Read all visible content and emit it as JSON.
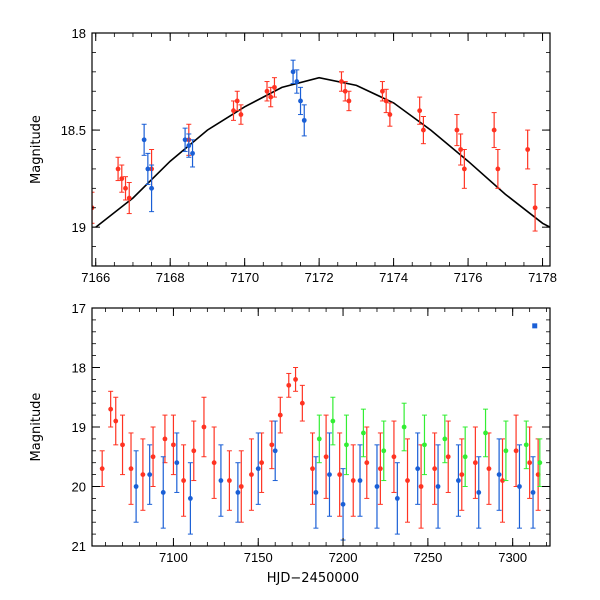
{
  "chart_data": [
    {
      "type": "scatter",
      "panel": "top",
      "title": "",
      "xlabel": "",
      "ylabel": "Magnitude",
      "xlim": [
        7165.9,
        7178.2
      ],
      "ylim": [
        19.2,
        18.0
      ],
      "y_inverted": true,
      "x_ticks": [
        7166,
        7168,
        7170,
        7172,
        7174,
        7176,
        7178
      ],
      "x_tick_labels": [
        "7166",
        "7168",
        "7170",
        "7172",
        "7174",
        "7176",
        "7178"
      ],
      "y_ticks": [
        18,
        18.5,
        19
      ],
      "y_tick_labels": [
        "18",
        "18.5",
        "19"
      ],
      "model_curve": {
        "name": "fit",
        "color": "#000000",
        "x": [
          7166.0,
          7167.0,
          7168.0,
          7169.0,
          7170.0,
          7171.0,
          7172.0,
          7173.0,
          7174.0,
          7175.0,
          7176.0,
          7177.0,
          7178.0,
          7178.2
        ],
        "y": [
          19.0,
          18.85,
          18.66,
          18.5,
          18.38,
          18.28,
          18.23,
          18.27,
          18.36,
          18.5,
          18.66,
          18.83,
          18.98,
          19.0
        ]
      },
      "series": [
        {
          "name": "red",
          "color": "#ff3322",
          "x": [
            7165.9,
            7166.6,
            7166.7,
            7166.8,
            7166.9,
            7167.5,
            7168.5,
            7169.7,
            7169.8,
            7169.9,
            7170.6,
            7170.7,
            7170.8,
            7172.6,
            7172.7,
            7172.8,
            7173.7,
            7173.8,
            7173.9,
            7174.7,
            7174.8,
            7175.7,
            7175.8,
            7175.9,
            7176.7,
            7176.8,
            7177.6,
            7177.8
          ],
          "y": [
            18.9,
            18.7,
            18.75,
            18.8,
            18.85,
            18.7,
            18.55,
            18.4,
            18.35,
            18.42,
            18.3,
            18.33,
            18.28,
            18.25,
            18.3,
            18.35,
            18.3,
            18.35,
            18.42,
            18.4,
            18.5,
            18.5,
            18.6,
            18.7,
            18.5,
            18.7,
            18.6,
            18.9
          ],
          "err": [
            0.08,
            0.06,
            0.07,
            0.06,
            0.08,
            0.1,
            0.08,
            0.05,
            0.05,
            0.05,
            0.05,
            0.05,
            0.05,
            0.05,
            0.05,
            0.05,
            0.05,
            0.06,
            0.06,
            0.07,
            0.07,
            0.08,
            0.08,
            0.1,
            0.09,
            0.1,
            0.1,
            0.12
          ]
        },
        {
          "name": "blue",
          "color": "#1a5fd6",
          "x": [
            7167.3,
            7167.4,
            7167.5,
            7168.4,
            7168.5,
            7168.6,
            7171.3,
            7171.4,
            7171.5,
            7171.6
          ],
          "y": [
            18.55,
            18.7,
            18.8,
            18.55,
            18.58,
            18.62,
            18.2,
            18.25,
            18.35,
            18.45
          ],
          "err": [
            0.08,
            0.08,
            0.12,
            0.06,
            0.06,
            0.07,
            0.06,
            0.06,
            0.07,
            0.08
          ]
        }
      ]
    },
    {
      "type": "scatter",
      "panel": "bottom",
      "title": "",
      "xlabel": "HJD−2450000",
      "ylabel": "Magnitude",
      "xlim": [
        7052,
        7322
      ],
      "ylim": [
        21,
        17
      ],
      "y_inverted": true,
      "x_ticks": [
        7100,
        7150,
        7200,
        7250,
        7300
      ],
      "x_tick_labels": [
        "7100",
        "7150",
        "7200",
        "7250",
        "7300"
      ],
      "y_ticks": [
        17,
        18,
        19,
        20,
        21
      ],
      "y_tick_labels": [
        "17",
        "18",
        "19",
        "20",
        "21"
      ],
      "series": [
        {
          "name": "red",
          "color": "#ff3322",
          "x": [
            7058,
            7063,
            7066,
            7070,
            7075,
            7082,
            7088,
            7095,
            7100,
            7106,
            7112,
            7118,
            7124,
            7133,
            7140,
            7146,
            7152,
            7158,
            7163,
            7168,
            7172,
            7176,
            7182,
            7190,
            7198,
            7206,
            7214,
            7222,
            7230,
            7238,
            7246,
            7254,
            7262,
            7270,
            7278,
            7286,
            7294,
            7302,
            7310,
            7315
          ],
          "y": [
            19.7,
            18.7,
            18.9,
            19.3,
            19.7,
            19.8,
            19.5,
            19.2,
            19.3,
            19.9,
            19.4,
            19.0,
            19.6,
            19.9,
            20.0,
            19.8,
            19.6,
            19.3,
            18.8,
            18.3,
            18.2,
            18.6,
            19.7,
            19.5,
            19.8,
            19.9,
            19.6,
            19.7,
            19.5,
            19.9,
            20.0,
            19.7,
            19.5,
            19.8,
            19.6,
            19.7,
            19.9,
            19.4,
            19.6,
            19.8
          ],
          "err": [
            0.3,
            0.3,
            0.4,
            0.5,
            0.6,
            0.6,
            0.5,
            0.4,
            0.5,
            0.6,
            0.5,
            0.5,
            0.6,
            0.5,
            0.6,
            0.6,
            0.5,
            0.4,
            0.3,
            0.2,
            0.2,
            0.3,
            0.6,
            0.7,
            0.7,
            0.6,
            0.6,
            0.6,
            0.6,
            0.7,
            0.7,
            0.6,
            0.6,
            0.6,
            0.6,
            0.6,
            0.7,
            0.6,
            0.6,
            0.6
          ]
        },
        {
          "name": "blue",
          "color": "#1a5fd6",
          "x": [
            7078,
            7086,
            7094,
            7102,
            7110,
            7128,
            7138,
            7150,
            7160,
            7184,
            7192,
            7200,
            7210,
            7220,
            7232,
            7244,
            7256,
            7268,
            7280,
            7292,
            7304,
            7312
          ],
          "y": [
            20.0,
            19.8,
            20.1,
            19.6,
            20.2,
            19.9,
            20.1,
            19.7,
            19.4,
            20.1,
            19.8,
            20.3,
            19.9,
            20.0,
            20.2,
            19.7,
            20.0,
            19.9,
            20.1,
            19.8,
            20.0,
            20.1
          ],
          "err": [
            0.6,
            0.5,
            0.6,
            0.5,
            0.6,
            0.6,
            0.5,
            0.6,
            0.5,
            0.6,
            0.7,
            0.6,
            0.6,
            0.7,
            0.6,
            0.6,
            0.7,
            0.6,
            0.6,
            0.6,
            0.7,
            0.6
          ]
        },
        {
          "name": "green",
          "color": "#33ee33",
          "x": [
            7186,
            7194,
            7202,
            7212,
            7224,
            7236,
            7248,
            7260,
            7272,
            7284,
            7296,
            7308,
            7316
          ],
          "y": [
            19.2,
            18.9,
            19.3,
            19.1,
            19.4,
            19.0,
            19.3,
            19.2,
            19.5,
            19.1,
            19.4,
            19.3,
            19.6
          ],
          "err": [
            0.4,
            0.4,
            0.5,
            0.4,
            0.5,
            0.4,
            0.5,
            0.4,
            0.5,
            0.4,
            0.5,
            0.4,
            0.4
          ]
        },
        {
          "name": "blue-outlier",
          "color": "#1a5fd6",
          "x": [
            7313
          ],
          "y": [
            17.3
          ],
          "err": [
            0
          ]
        }
      ]
    }
  ]
}
